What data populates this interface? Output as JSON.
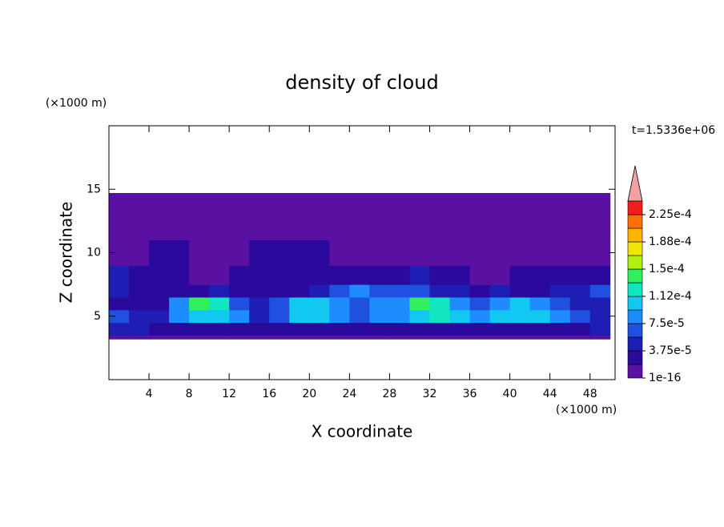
{
  "chart_data": {
    "type": "contour",
    "title": "density of cloud",
    "xlabel": "X coordinate",
    "ylabel": "Z coordinate",
    "x_unit": "(×1000 m)",
    "y_unit": "(×1000 m)",
    "annotation": "t=1.5336e+06",
    "xlim": [
      0,
      50.5
    ],
    "ylim": [
      0,
      20
    ],
    "xticks": [
      4,
      8,
      12,
      16,
      20,
      24,
      28,
      32,
      36,
      40,
      44,
      48
    ],
    "yticks": [
      5,
      10,
      15
    ],
    "field": {
      "x_edges": [
        0,
        2,
        4,
        6,
        8,
        10,
        12,
        14,
        16,
        18,
        20,
        22,
        24,
        26,
        28,
        30,
        32,
        34,
        36,
        38,
        40,
        42,
        44,
        46,
        48,
        50
      ],
      "z_edges": [
        3.2,
        3.5,
        4.5,
        5.5,
        6.5,
        7.5,
        9,
        11,
        14.7
      ],
      "values": [
        [
          1e-16,
          1e-16,
          1e-16,
          1e-16,
          1e-16,
          1e-16,
          1e-16,
          1e-16,
          1e-16,
          1e-16,
          1e-16,
          1e-16,
          1e-16,
          1e-16,
          1e-16,
          1e-16,
          1e-16,
          1e-16,
          1e-16,
          1e-16,
          1e-16,
          1e-16,
          1e-16,
          1e-16,
          1e-16
        ],
        [
          4e-05,
          4e-05,
          3e-05,
          3e-05,
          2e-05,
          2e-05,
          3e-05,
          2e-05,
          2e-05,
          2e-05,
          3e-05,
          2e-05,
          2e-05,
          2e-05,
          2e-05,
          2e-05,
          3e-05,
          2e-05,
          2e-05,
          2e-05,
          2e-05,
          2e-05,
          3e-05,
          2e-05,
          4e-05
        ],
        [
          6e-05,
          5e-05,
          4e-05,
          8e-05,
          0.000105,
          0.00011,
          9e-05,
          5e-05,
          6e-05,
          0.000105,
          0.00011,
          9e-05,
          6e-05,
          8e-05,
          8e-05,
          0.00011,
          0.000115,
          0.0001,
          8e-05,
          0.0001,
          0.000105,
          0.0001,
          9e-05,
          6e-05,
          5e-05
        ],
        [
          3e-05,
          3e-05,
          2e-05,
          8e-05,
          0.000135,
          0.00012,
          6e-05,
          4e-05,
          6e-05,
          0.0001,
          0.000105,
          8e-05,
          7e-05,
          8e-05,
          9e-05,
          0.000135,
          0.00013,
          9e-05,
          7e-05,
          9e-05,
          0.00011,
          9e-05,
          7e-05,
          5e-05,
          4e-05
        ],
        [
          5e-05,
          3e-05,
          2e-05,
          2e-05,
          3e-05,
          4e-05,
          2e-05,
          2e-05,
          3e-05,
          3e-05,
          5e-05,
          7e-05,
          8e-05,
          7e-05,
          6e-05,
          7e-05,
          5e-05,
          4e-05,
          3e-05,
          4e-05,
          3e-05,
          3e-05,
          4e-05,
          5e-05,
          6e-05
        ],
        [
          4e-05,
          3e-05,
          2e-05,
          2e-05,
          1e-16,
          1e-16,
          2e-05,
          2e-05,
          2e-05,
          2e-05,
          3e-05,
          3e-05,
          2e-05,
          2e-05,
          3e-05,
          4e-05,
          3e-05,
          2e-05,
          1e-16,
          1e-16,
          2e-05,
          2e-05,
          2e-05,
          3e-05,
          3e-05
        ],
        [
          1e-16,
          1e-16,
          2e-05,
          2e-05,
          1e-16,
          1e-16,
          1e-16,
          2e-05,
          3e-05,
          2e-05,
          2e-05,
          1e-16,
          1e-16,
          1e-16,
          1e-16,
          1e-16,
          1e-16,
          1e-16,
          1e-16,
          1e-16,
          1e-16,
          1e-16,
          1e-16,
          1e-16,
          1e-16
        ],
        [
          1e-16,
          1e-16,
          1e-16,
          1e-16,
          1e-16,
          1e-16,
          1e-16,
          1e-16,
          1e-16,
          1e-16,
          1e-16,
          1e-16,
          1e-16,
          1e-16,
          1e-16,
          1e-16,
          1e-16,
          1e-16,
          1e-16,
          1e-16,
          1e-16,
          1e-16,
          1e-16,
          1e-16,
          1e-16
        ]
      ]
    },
    "colorbar": {
      "lim": [
        1e-16,
        0.00024375
      ],
      "colors": [
        "#5a10a0",
        "#2a0a9c",
        "#1e1eb4",
        "#2050e0",
        "#1e8cff",
        "#10c8f0",
        "#10e6c0",
        "#30f060",
        "#b0f010",
        "#f0e600",
        "#ffb400",
        "#ff6e00",
        "#f01e1e"
      ],
      "extend_color": "#f4a0a0",
      "ticks": [
        1e-16,
        {
          "value": 3.75e-05,
          "label": "3.75e-5"
        },
        {
          "value": 7.5e-05,
          "label": "7.5e-5"
        },
        {
          "value": 0.0001125,
          "label": "1.12e-4"
        },
        {
          "value": 0.00015,
          "label": "1.5e-4"
        },
        {
          "value": 0.0001875,
          "label": "1.88e-4"
        },
        {
          "value": 0.000225,
          "label": "2.25e-4"
        }
      ]
    }
  }
}
